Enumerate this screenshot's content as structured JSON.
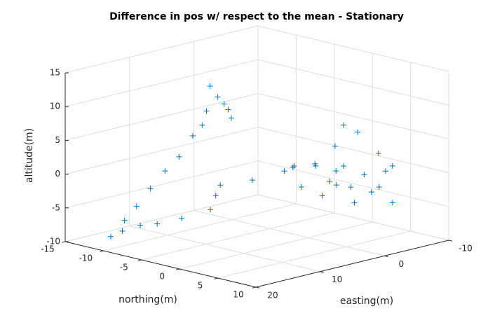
{
  "chart_data": {
    "type": "scatter3d",
    "title": "Difference in pos w/ respect to the mean - Stationary",
    "xlabel": "easting(m)",
    "ylabel": "northing(m)",
    "zlabel": "altitude(m)",
    "color": "#0072bd",
    "marker": "+",
    "grid": true,
    "xlim": [
      -10,
      20
    ],
    "xticks": [
      -10,
      0,
      10,
      20
    ],
    "ylim": [
      -15,
      10
    ],
    "yticks": [
      -15,
      -10,
      -5,
      0,
      5,
      10
    ],
    "zlim": [
      -10,
      15
    ],
    "zticks": [
      -10,
      -5,
      0,
      5,
      10,
      15
    ],
    "x": [
      6.6,
      7.3,
      6.9,
      8.7,
      8.4,
      6.2,
      8.9,
      8.7,
      10,
      11.3,
      11.6,
      14,
      17.3,
      19.2,
      18.7,
      15.5,
      15.9,
      12.2,
      9.4,
      8.8,
      9.4,
      7.5,
      4.3,
      4.1,
      1.8,
      2.4,
      0.3,
      0.3,
      -1.1,
      -4.2,
      -5.2,
      -4.3,
      -3.5,
      -3.5,
      -2.9,
      0,
      0,
      -4.7,
      0.4,
      0,
      2.6,
      2.8,
      2,
      3.8,
      2.5
    ],
    "y": [
      -7.3,
      -5.7,
      -5.2,
      -2.75,
      -3.4,
      -8.1,
      -6.4,
      -7.8,
      -8.5,
      -9.25,
      -10.9,
      -10.7,
      -9.5,
      -9.7,
      -8.6,
      -8.95,
      -6.4,
      -6.3,
      -4.9,
      -4.7,
      -3.6,
      -1,
      0.5,
      1.6,
      2.4,
      3,
      3.9,
      4.9,
      2.6,
      1.1,
      2.1,
      5.6,
      8.1,
      7.2,
      4.9,
      9.3,
      8.3,
      7.1,
      6.4,
      5.6,
      5.9,
      4.2,
      4.5,
      2.3,
      0.1
    ],
    "z": [
      12,
      11,
      10,
      9,
      10,
      8,
      7,
      5,
      2,
      0,
      -3,
      -5,
      -6,
      -8,
      -7,
      -7,
      -6,
      -6,
      -5,
      -3,
      -1,
      0,
      1,
      2,
      2,
      2,
      1,
      2,
      4,
      6,
      5,
      3,
      2,
      1,
      0,
      0,
      -1,
      -4,
      -3,
      -1,
      0,
      -2,
      0,
      -1,
      1
    ]
  }
}
